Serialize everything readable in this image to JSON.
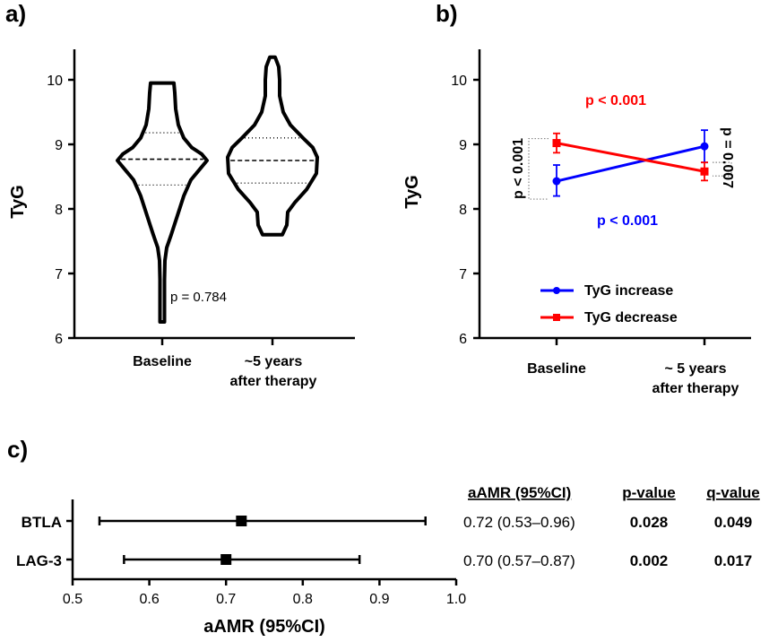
{
  "chart_data": [
    {
      "panel": "a)",
      "type": "violin",
      "ylabel": "TyG",
      "ylim": [
        6,
        10.5
      ],
      "yticks": [
        "6",
        "7",
        "8",
        "9",
        "10"
      ],
      "categories": [
        "Baseline",
        "~5 years after therapy"
      ],
      "category_lines": [
        [
          "Baseline"
        ],
        [
          "~5 years",
          "after therapy"
        ]
      ],
      "series": [
        {
          "name": "Baseline",
          "min": 6.25,
          "max": 9.95,
          "q1": 8.37,
          "median": 8.77,
          "q3": 9.18
        },
        {
          "name": "~5 years after therapy",
          "min": 7.6,
          "max": 10.35,
          "q1": 8.4,
          "median": 8.75,
          "q3": 9.1
        }
      ],
      "annotation": "p = 0.784"
    },
    {
      "panel": "b)",
      "type": "line",
      "ylabel": "TyG",
      "ylim": [
        6,
        10.5
      ],
      "yticks": [
        "6",
        "7",
        "8",
        "9",
        "10"
      ],
      "categories": [
        "Baseline",
        "~ 5 years after therapy"
      ],
      "category_lines": [
        [
          "Baseline"
        ],
        [
          "~ 5 years",
          "after therapy"
        ]
      ],
      "series": [
        {
          "name": "TyG increase",
          "color": "#0000ff",
          "marker": "circle",
          "values": [
            8.43,
            8.97
          ],
          "err_low": [
            8.2,
            8.72
          ],
          "err_high": [
            8.68,
            9.22
          ]
        },
        {
          "name": "TyG decrease",
          "color": "#ff0000",
          "marker": "square",
          "values": [
            9.02,
            8.58
          ],
          "err_low": [
            8.87,
            8.44
          ],
          "err_high": [
            9.17,
            8.72
          ]
        }
      ],
      "annotations": {
        "top": "p < 0.001",
        "bottom": "p < 0.001",
        "left": "p < 0.001",
        "right": "p = 0.007"
      },
      "legend_position": "lower-center"
    },
    {
      "panel": "c)",
      "type": "forest",
      "xlabel": "aAMR (95%CI)",
      "xlim": [
        0.5,
        1.0
      ],
      "xticks": [
        "0.5",
        "0.6",
        "0.7",
        "0.8",
        "0.9",
        "1.0"
      ],
      "rows": [
        {
          "label": "BTLA",
          "est": 0.72,
          "low": 0.535,
          "high": 0.96,
          "ci_text": "0.72 (0.53–0.96)",
          "p": "0.028",
          "q": "0.049"
        },
        {
          "label": "LAG-3",
          "est": 0.7,
          "low": 0.567,
          "high": 0.874,
          "ci_text": "0.70 (0.57–0.87)",
          "p": "0.002",
          "q": "0.017"
        }
      ],
      "table_headers": [
        "aAMR (95%CI)",
        "p-value",
        "q-value"
      ]
    }
  ]
}
